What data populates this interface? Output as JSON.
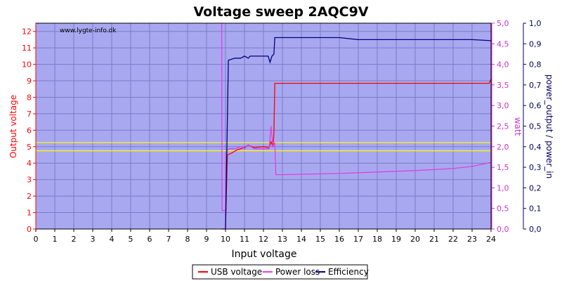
{
  "chart_data": {
    "type": "line",
    "title": "Voltage sweep 2AQC9V",
    "watermark": "www.lygte-info.dk",
    "xlabel": "Input voltage",
    "ylabel_left": "Output voltage",
    "ylabel_right1": "watt",
    "ylabel_right2": "power_output / power_in",
    "x_ticks": [
      "0",
      "1",
      "2",
      "3",
      "4",
      "5",
      "6",
      "7",
      "8",
      "9",
      "10",
      "11",
      "12",
      "13",
      "14",
      "15",
      "16",
      "17",
      "18",
      "19",
      "20",
      "21",
      "22",
      "23",
      "24"
    ],
    "y_left_ticks": [
      "0",
      "1",
      "2",
      "3",
      "4",
      "5",
      "6",
      "7",
      "8",
      "9",
      "10",
      "11",
      "12"
    ],
    "y_right1_ticks": [
      "0,0",
      "0,5",
      "1,0",
      "1,5",
      "2,0",
      "2,5",
      "3,0",
      "3,5",
      "4,0",
      "4,5",
      "5,0"
    ],
    "y_right2_ticks": [
      "0,0",
      "0,1",
      "0,2",
      "0,3",
      "0,4",
      "0,5",
      "0,6",
      "0,7",
      "0,8",
      "0,9",
      "1,0"
    ],
    "xlim": [
      0,
      24
    ],
    "ylim_left": [
      0,
      12.5
    ],
    "ylim_right1": [
      0,
      5
    ],
    "ylim_right2": [
      0,
      1
    ],
    "reference_lines": [
      4.75,
      5.25
    ],
    "colors": {
      "plot_bg": "#a8a8f0",
      "grid": "#7a7ac8",
      "usb": "#ff0000",
      "loss": "#e040e0",
      "eff": "#000080",
      "ref": "#ffff00",
      "left_axis": "#ff0000",
      "right1_axis": "#d030d0",
      "right2_axis": "#000060"
    },
    "series": [
      {
        "name": "USB voltage",
        "axis": "left",
        "points": [
          [
            9.8,
            0
          ],
          [
            10.0,
            0
          ],
          [
            10.1,
            4.5
          ],
          [
            10.3,
            4.6
          ],
          [
            10.6,
            4.8
          ],
          [
            11.0,
            4.95
          ],
          [
            11.2,
            5.1
          ],
          [
            11.5,
            4.95
          ],
          [
            12.0,
            5.0
          ],
          [
            12.3,
            4.95
          ],
          [
            12.4,
            5.3
          ],
          [
            12.5,
            5.0
          ],
          [
            12.55,
            5.8
          ],
          [
            12.6,
            8.85
          ],
          [
            13.0,
            8.85
          ],
          [
            18.0,
            8.85
          ],
          [
            23.9,
            8.85
          ],
          [
            24.0,
            9.1
          ]
        ]
      },
      {
        "name": "Power loss",
        "axis": "right1",
        "points": [
          [
            9.8,
            5.0
          ],
          [
            9.82,
            0.45
          ],
          [
            10.0,
            0.45
          ],
          [
            10.05,
            1.9
          ],
          [
            10.2,
            1.95
          ],
          [
            10.5,
            1.95
          ],
          [
            10.8,
            2.0
          ],
          [
            11.0,
            1.95
          ],
          [
            11.2,
            2.05
          ],
          [
            11.5,
            1.95
          ],
          [
            12.0,
            1.95
          ],
          [
            12.3,
            1.95
          ],
          [
            12.4,
            2.5
          ],
          [
            12.5,
            2.0
          ],
          [
            12.6,
            2.1
          ],
          [
            12.65,
            1.32
          ],
          [
            13.0,
            1.32
          ],
          [
            16.0,
            1.35
          ],
          [
            20.0,
            1.42
          ],
          [
            22.0,
            1.47
          ],
          [
            23.0,
            1.52
          ],
          [
            24.0,
            1.62
          ]
        ]
      },
      {
        "name": "Efficiency",
        "axis": "right2",
        "points": [
          [
            10.0,
            0
          ],
          [
            10.15,
            0.82
          ],
          [
            10.5,
            0.83
          ],
          [
            10.8,
            0.83
          ],
          [
            11.0,
            0.84
          ],
          [
            11.2,
            0.83
          ],
          [
            11.3,
            0.84
          ],
          [
            12.0,
            0.84
          ],
          [
            12.25,
            0.84
          ],
          [
            12.35,
            0.81
          ],
          [
            12.45,
            0.84
          ],
          [
            12.55,
            0.85
          ],
          [
            12.6,
            0.93
          ],
          [
            13.0,
            0.93
          ],
          [
            16.0,
            0.93
          ],
          [
            17.0,
            0.92
          ],
          [
            20.0,
            0.92
          ],
          [
            23.0,
            0.92
          ],
          [
            24.0,
            0.915
          ]
        ]
      }
    ],
    "legend": {
      "placement": "bottom-center",
      "items": [
        {
          "label": "USB voltage",
          "color": "#ff0000"
        },
        {
          "label": "Power loss",
          "color": "#e040e0"
        },
        {
          "label": "Efficiency",
          "color": "#000080"
        }
      ]
    }
  }
}
